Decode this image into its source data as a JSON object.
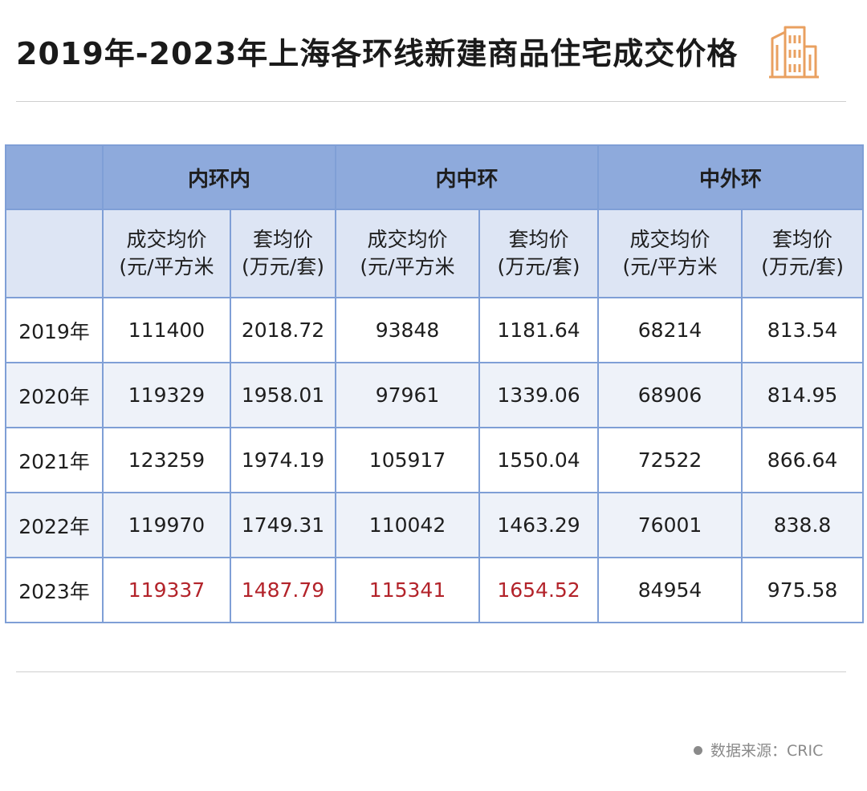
{
  "title": "2019年-2023年上海各环线新建商品住宅成交价格",
  "accent_color": "#e9a060",
  "header_color": "#8eaadc",
  "highlight_color": "#b3232a",
  "table": {
    "groups": [
      "内环内",
      "内中环",
      "中外环"
    ],
    "sub_headers": [
      {
        "line1": "成交均价",
        "line2": "(元/平方米"
      },
      {
        "line1": "套均价",
        "line2": "(万元/套)"
      },
      {
        "line1": "成交均价",
        "line2": "(元/平方米"
      },
      {
        "line1": "套均价",
        "line2": "(万元/套)"
      },
      {
        "line1": "成交均价",
        "line2": "(元/平方米"
      },
      {
        "line1": "套均价",
        "line2": "(万元/套)"
      }
    ],
    "rows": [
      {
        "year": "2019年",
        "cells": [
          "111400",
          "2018.72",
          "93848",
          "1181.64",
          "68214",
          "813.54"
        ]
      },
      {
        "year": "2020年",
        "cells": [
          "119329",
          "1958.01",
          "97961",
          "1339.06",
          "68906",
          "814.95"
        ]
      },
      {
        "year": "2021年",
        "cells": [
          "123259",
          "1974.19",
          "105917",
          "1550.04",
          "72522",
          "866.64"
        ]
      },
      {
        "year": "2022年",
        "cells": [
          "119970",
          "1749.31",
          "110042",
          "1463.29",
          "76001",
          "838.8"
        ]
      },
      {
        "year": "2023年",
        "cells": [
          "119337",
          "1487.79",
          "115341",
          "1654.52",
          "84954",
          "975.58"
        ]
      }
    ]
  },
  "source": "数据来源：CRIC"
}
